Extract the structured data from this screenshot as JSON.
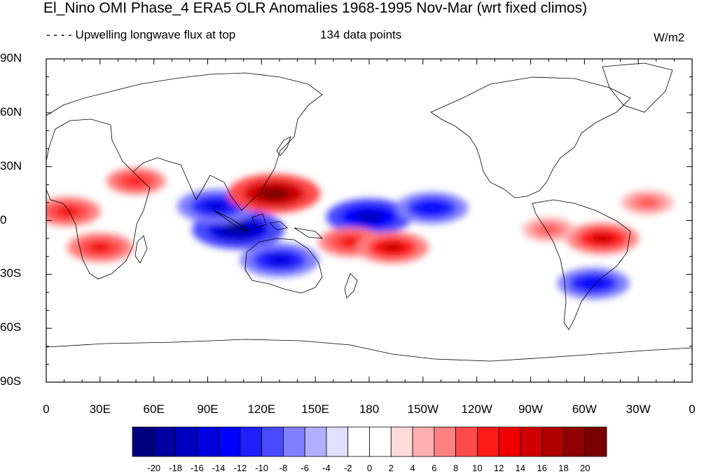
{
  "header": {
    "title": "El_Nino OMI Phase_4 ERA5 OLR Anomalies 1968-1995 Nov-Mar (wrt fixed climos)",
    "left_string": "- - - - Upwelling longwave flux at top",
    "center_string": "134 data points",
    "right_string": "W/m2"
  },
  "axes": {
    "y_labels": [
      "90N",
      "60N",
      "30N",
      "0",
      "30S",
      "60S",
      "90S"
    ],
    "x_labels": [
      "0",
      "30E",
      "60E",
      "90E",
      "120E",
      "150E",
      "180",
      "150W",
      "120W",
      "90W",
      "60W",
      "30W",
      "0"
    ]
  },
  "colorbar": {
    "labels": [
      "-20",
      "-18",
      "-16",
      "-14",
      "-12",
      "-10",
      "-8",
      "-6",
      "-4",
      "-2",
      "0",
      "2",
      "4",
      "6",
      "8",
      "10",
      "12",
      "14",
      "16",
      "18",
      "20"
    ],
    "colors": [
      "#00007f",
      "#0000a0",
      "#0000c0",
      "#0000e0",
      "#0000ff",
      "#2020ff",
      "#4a4aff",
      "#8080ff",
      "#b0b0ff",
      "#e0e0ff",
      "#ffffff",
      "#ffffff",
      "#ffdcdc",
      "#ffb0b0",
      "#ff8080",
      "#ff4a4a",
      "#ff1a1a",
      "#f00000",
      "#d00000",
      "#b00000",
      "#900000",
      "#7a0000"
    ]
  },
  "map": {
    "projection": "cylindrical-equidistant",
    "lon_range": [
      0,
      360
    ],
    "lat_range": [
      -90,
      90
    ],
    "anomalies": [
      {
        "lon": 107,
        "lat": -5,
        "value": -20
      },
      {
        "lon": 95,
        "lat": 8,
        "value": -16
      },
      {
        "lon": 130,
        "lat": -22,
        "value": -16
      },
      {
        "lon": 180,
        "lat": 2,
        "value": -18
      },
      {
        "lon": 215,
        "lat": 7,
        "value": -14
      },
      {
        "lon": 127,
        "lat": 15,
        "value": 20
      },
      {
        "lon": 170,
        "lat": -12,
        "value": 12
      },
      {
        "lon": 193,
        "lat": -15,
        "value": 14
      },
      {
        "lon": 30,
        "lat": -15,
        "value": 12
      },
      {
        "lon": 12,
        "lat": 5,
        "value": 12
      },
      {
        "lon": 50,
        "lat": 22,
        "value": 10
      },
      {
        "lon": 310,
        "lat": -10,
        "value": 14
      },
      {
        "lon": 305,
        "lat": -35,
        "value": -14
      },
      {
        "lon": 335,
        "lat": 10,
        "value": 8
      },
      {
        "lon": 280,
        "lat": -5,
        "value": 8
      }
    ]
  }
}
